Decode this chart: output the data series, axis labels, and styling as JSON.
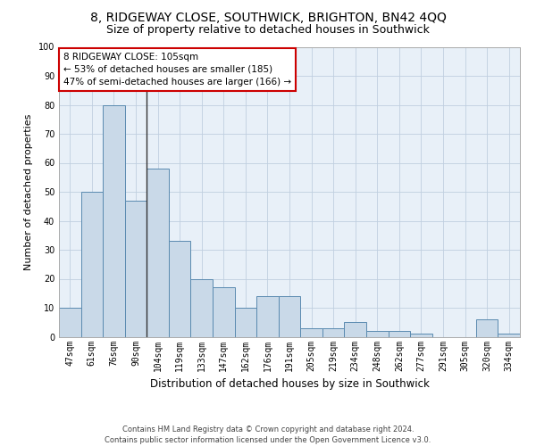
{
  "title1": "8, RIDGEWAY CLOSE, SOUTHWICK, BRIGHTON, BN42 4QQ",
  "title2": "Size of property relative to detached houses in Southwick",
  "xlabel": "Distribution of detached houses by size in Southwick",
  "ylabel": "Number of detached properties",
  "categories": [
    "47sqm",
    "61sqm",
    "76sqm",
    "90sqm",
    "104sqm",
    "119sqm",
    "133sqm",
    "147sqm",
    "162sqm",
    "176sqm",
    "191sqm",
    "205sqm",
    "219sqm",
    "234sqm",
    "248sqm",
    "262sqm",
    "277sqm",
    "291sqm",
    "305sqm",
    "320sqm",
    "334sqm"
  ],
  "values": [
    10,
    50,
    80,
    47,
    58,
    33,
    20,
    17,
    10,
    14,
    14,
    3,
    3,
    5,
    2,
    2,
    1,
    0,
    0,
    6,
    1
  ],
  "bar_color": "#c9d9e8",
  "bar_edge_color": "#5a8ab0",
  "highlight_line_color": "#333333",
  "annotation_box_text": "8 RIDGEWAY CLOSE: 105sqm\n← 53% of detached houses are smaller (185)\n47% of semi-detached houses are larger (166) →",
  "annotation_box_edge_color": "#cc0000",
  "ylim": [
    0,
    100
  ],
  "yticks": [
    0,
    10,
    20,
    30,
    40,
    50,
    60,
    70,
    80,
    90,
    100
  ],
  "footnote": "Contains HM Land Registry data © Crown copyright and database right 2024.\nContains public sector information licensed under the Open Government Licence v3.0.",
  "background_color": "#ffffff",
  "plot_bg_color": "#e8f0f8",
  "grid_color": "#c0cfe0",
  "title1_fontsize": 10,
  "title2_fontsize": 9,
  "xlabel_fontsize": 8.5,
  "ylabel_fontsize": 8,
  "tick_fontsize": 7,
  "annotation_fontsize": 7.5,
  "footnote_fontsize": 6,
  "highlight_bar_index": 4
}
